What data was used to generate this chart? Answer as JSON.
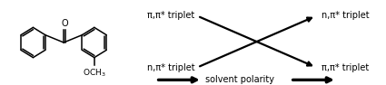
{
  "fig_width": 4.25,
  "fig_height": 0.94,
  "dpi": 100,
  "bg_color": "#ffffff",
  "labels": {
    "top_left": "π,π* triplet",
    "bottom_left": "n,π* triplet",
    "top_right": "n,π* triplet",
    "bottom_right": "π,π* triplet",
    "bottom_center": "solvent polarity"
  },
  "text_color": "#000000",
  "label_fontsize": 7.0,
  "arrow_lw": 1.6,
  "mol_lw": 1.1
}
